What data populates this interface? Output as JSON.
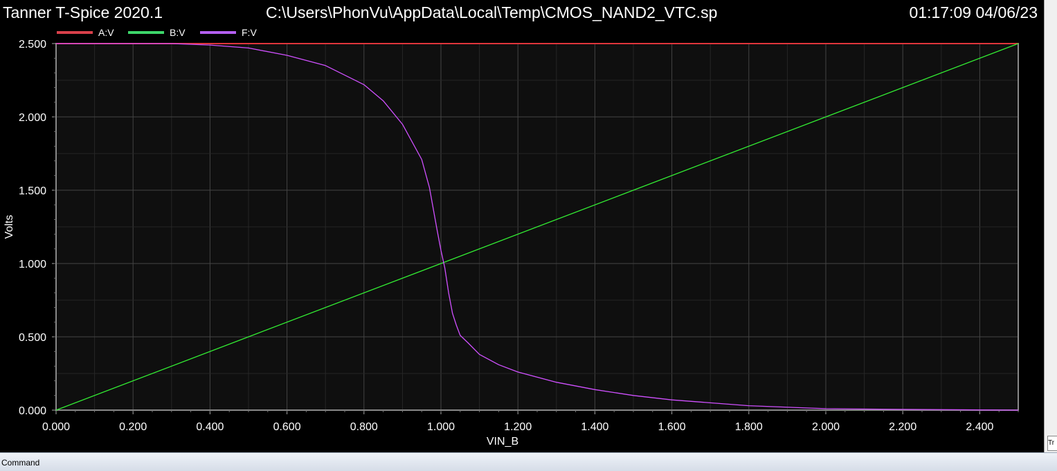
{
  "header": {
    "app_title": "Tanner T-Spice 2020.1",
    "file_path": "C:\\Users\\PhonVu\\AppData\\Local\\Temp\\CMOS_NAND2_VTC.sp",
    "timestamp": "01:17:09 04/06/23"
  },
  "status_bar": {
    "command_label": "Command",
    "right_tab_label": "Tr"
  },
  "chart_data": {
    "type": "line",
    "title": "",
    "xlabel": "VIN_B",
    "ylabel": "Volts",
    "xlim": [
      0,
      2.5
    ],
    "ylim": [
      0,
      2.5
    ],
    "grid": true,
    "legend_position": "top-left",
    "background_color": "#0f0f0f",
    "x_ticks": [
      "0.000",
      "0.200",
      "0.400",
      "0.600",
      "0.800",
      "1.000",
      "1.200",
      "1.400",
      "1.600",
      "1.800",
      "2.000",
      "2.200",
      "2.400"
    ],
    "y_ticks": [
      "0.000",
      "0.500",
      "1.000",
      "1.500",
      "2.000",
      "2.500"
    ],
    "series": [
      {
        "name": "A:V",
        "color": "#e0353b",
        "legend_color": "#d9404a",
        "x": [
          0,
          2.5
        ],
        "y": [
          2.5,
          2.5
        ]
      },
      {
        "name": "B:V",
        "color": "#33ee33",
        "legend_color": "#3dd66a",
        "x": [
          0,
          0.5,
          1.0,
          1.5,
          2.0,
          2.5
        ],
        "y": [
          0,
          0.5,
          1.0,
          1.5,
          2.0,
          2.5
        ]
      },
      {
        "name": "F:V",
        "color": "#d050ff",
        "legend_color": "#b45ff0",
        "x": [
          0,
          0.3,
          0.4,
          0.5,
          0.6,
          0.7,
          0.8,
          0.85,
          0.9,
          0.95,
          0.97,
          0.99,
          1.0,
          1.01,
          1.02,
          1.03,
          1.04,
          1.05,
          1.07,
          1.1,
          1.15,
          1.2,
          1.3,
          1.4,
          1.5,
          1.6,
          1.8,
          2.0,
          2.2,
          2.5
        ],
        "y": [
          2.5,
          2.5,
          2.49,
          2.47,
          2.42,
          2.35,
          2.22,
          2.11,
          1.95,
          1.71,
          1.52,
          1.23,
          1.09,
          0.97,
          0.8,
          0.66,
          0.58,
          0.51,
          0.46,
          0.38,
          0.31,
          0.26,
          0.19,
          0.14,
          0.1,
          0.07,
          0.03,
          0.01,
          0.005,
          0.0
        ]
      }
    ]
  }
}
